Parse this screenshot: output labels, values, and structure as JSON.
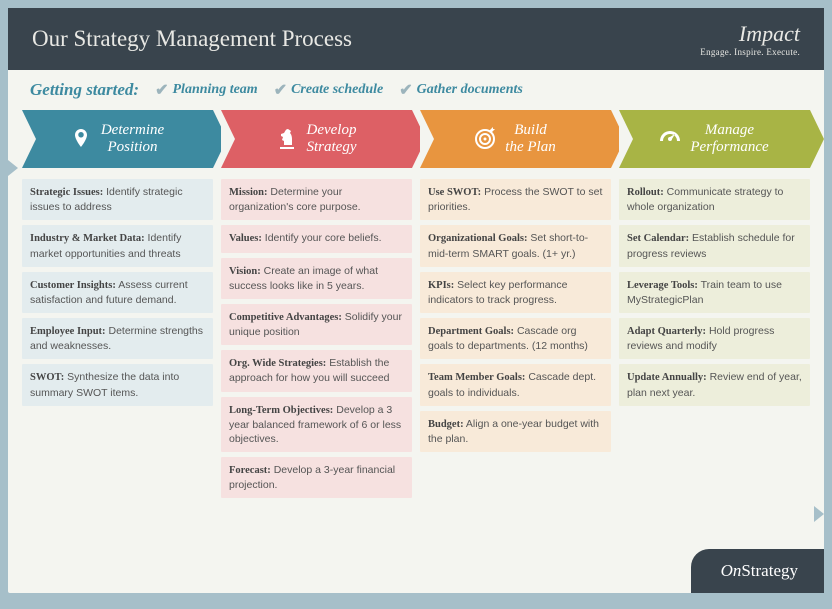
{
  "header": {
    "title": "Our Strategy Management Process",
    "brand": "Impact",
    "tagline": "Engage. Inspire. Execute."
  },
  "gettingStarted": {
    "label": "Getting started:",
    "items": [
      "Planning team",
      "Create schedule",
      "Gather documents"
    ]
  },
  "columns": [
    {
      "title": "Determine\nPosition",
      "color": "#3d8aa0",
      "bg": "#e3ecee",
      "icon": "pin",
      "items": [
        {
          "b": "Strategic Issues:",
          "t": " Identify strategic issues to address"
        },
        {
          "b": "Industry & Market Data:",
          "t": " Identify market opportunities and threats"
        },
        {
          "b": "Customer Insights:",
          "t": " Assess current satisfaction and future demand."
        },
        {
          "b": "Employee Input:",
          "t": " Determine strengths and weaknesses."
        },
        {
          "b": "SWOT:",
          "t": " Synthesize the data into summary SWOT items."
        }
      ]
    },
    {
      "title": "Develop\nStrategy",
      "color": "#dd6065",
      "bg": "#f6e1e0",
      "icon": "knight",
      "items": [
        {
          "b": "Mission:",
          "t": " Determine your organization's core purpose."
        },
        {
          "b": "Values:",
          "t": " Identify your core beliefs."
        },
        {
          "b": "Vision:",
          "t": " Create an image of what success looks like in 5 years."
        },
        {
          "b": "Competitive Advantages:",
          "t": " Solidify your unique position"
        },
        {
          "b": "Org. Wide Strategies:",
          "t": " Establish the approach for how you will succeed"
        },
        {
          "b": "Long-Term Objectives:",
          "t": " Develop a 3 year balanced framework of 6 or less objectives."
        },
        {
          "b": "Forecast:",
          "t": " Develop a 3-year financial projection."
        }
      ]
    },
    {
      "title": "Build\nthe Plan",
      "color": "#e8953f",
      "bg": "#f8ead9",
      "icon": "target",
      "items": [
        {
          "b": "Use SWOT:",
          "t": " Process the SWOT to set priorities."
        },
        {
          "b": "Organizational Goals:",
          "t": " Set short-to-mid-term SMART goals. (1+ yr.)"
        },
        {
          "b": "KPIs:",
          "t": " Select key performance indicators to track progress."
        },
        {
          "b": "Department Goals:",
          "t": " Cascade org goals to departments. (12 months)"
        },
        {
          "b": "Team Member Goals:",
          "t": " Cascade dept. goals to individuals."
        },
        {
          "b": "Budget:",
          "t": " Align a one-year budget with the plan."
        }
      ]
    },
    {
      "title": "Manage\nPerformance",
      "color": "#a8b445",
      "bg": "#edeedb",
      "icon": "gauge",
      "items": [
        {
          "b": "Rollout:",
          "t": " Communicate strategy to whole organization"
        },
        {
          "b": "Set Calendar:",
          "t": " Establish schedule for progress reviews"
        },
        {
          "b": "Leverage Tools:",
          "t": " Train team to use MyStrategicPlan"
        },
        {
          "b": "Adapt Quarterly:",
          "t": " Hold progress reviews and modify"
        },
        {
          "b": "Update Annually:",
          "t": " Review end of year, plan next year."
        }
      ]
    }
  ],
  "footer": {
    "logo_prefix": "On",
    "logo_main": "Strategy"
  },
  "style": {
    "page_bg": "#a6bfc9",
    "canvas_bg": "#f4f5f0",
    "header_bg": "#39444d",
    "link_color": "#3d8aa0",
    "title_fontsize": 23,
    "arrow_height": 58,
    "card_fontsize": 10.5
  }
}
